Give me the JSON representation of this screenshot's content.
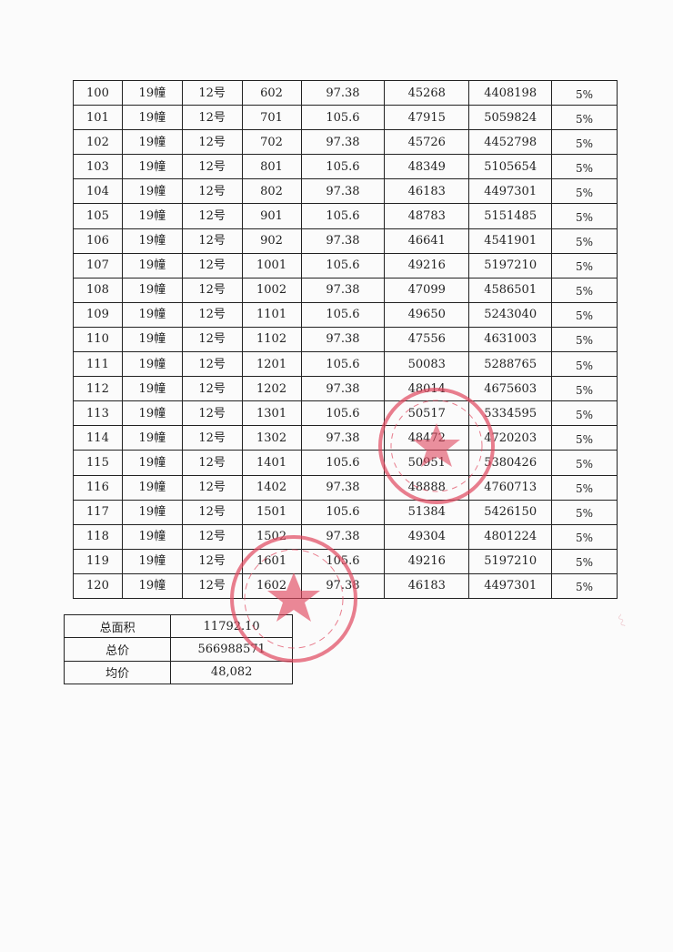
{
  "table": {
    "rows": [
      [
        "100",
        "19幢",
        "12号",
        "602",
        "97.38",
        "45268",
        "4408198",
        "5%"
      ],
      [
        "101",
        "19幢",
        "12号",
        "701",
        "105.6",
        "47915",
        "5059824",
        "5%"
      ],
      [
        "102",
        "19幢",
        "12号",
        "702",
        "97.38",
        "45726",
        "4452798",
        "5%"
      ],
      [
        "103",
        "19幢",
        "12号",
        "801",
        "105.6",
        "48349",
        "5105654",
        "5%"
      ],
      [
        "104",
        "19幢",
        "12号",
        "802",
        "97.38",
        "46183",
        "4497301",
        "5%"
      ],
      [
        "105",
        "19幢",
        "12号",
        "901",
        "105.6",
        "48783",
        "5151485",
        "5%"
      ],
      [
        "106",
        "19幢",
        "12号",
        "902",
        "97.38",
        "46641",
        "4541901",
        "5%"
      ],
      [
        "107",
        "19幢",
        "12号",
        "1001",
        "105.6",
        "49216",
        "5197210",
        "5%"
      ],
      [
        "108",
        "19幢",
        "12号",
        "1002",
        "97.38",
        "47099",
        "4586501",
        "5%"
      ],
      [
        "109",
        "19幢",
        "12号",
        "1101",
        "105.6",
        "49650",
        "5243040",
        "5%"
      ],
      [
        "110",
        "19幢",
        "12号",
        "1102",
        "97.38",
        "47556",
        "4631003",
        "5%"
      ],
      [
        "111",
        "19幢",
        "12号",
        "1201",
        "105.6",
        "50083",
        "5288765",
        "5%"
      ],
      [
        "112",
        "19幢",
        "12号",
        "1202",
        "97.38",
        "48014",
        "4675603",
        "5%"
      ],
      [
        "113",
        "19幢",
        "12号",
        "1301",
        "105.6",
        "50517",
        "5334595",
        "5%"
      ],
      [
        "114",
        "19幢",
        "12号",
        "1302",
        "97.38",
        "48472",
        "4720203",
        "5%"
      ],
      [
        "115",
        "19幢",
        "12号",
        "1401",
        "105.6",
        "50951",
        "5380426",
        "5%"
      ],
      [
        "116",
        "19幢",
        "12号",
        "1402",
        "97.38",
        "48888",
        "4760713",
        "5%"
      ],
      [
        "117",
        "19幢",
        "12号",
        "1501",
        "105.6",
        "51384",
        "5426150",
        "5%"
      ],
      [
        "118",
        "19幢",
        "12号",
        "1502",
        "97.38",
        "49304",
        "4801224",
        "5%"
      ],
      [
        "119",
        "19幢",
        "12号",
        "1601",
        "105.6",
        "49216",
        "5197210",
        "5%"
      ],
      [
        "120",
        "19幢",
        "12号",
        "1602",
        "97.38",
        "46183",
        "4497301",
        "5%"
      ]
    ]
  },
  "summary": [
    {
      "label": "总面积",
      "value": "11792.10"
    },
    {
      "label": "总价",
      "value": "566988571"
    },
    {
      "label": "均价",
      "value": "48,082"
    }
  ],
  "colors": {
    "stamp": "#e0485f",
    "ink": "#222222"
  },
  "stamps": [
    "company-seal-right",
    "company-seal-center"
  ]
}
